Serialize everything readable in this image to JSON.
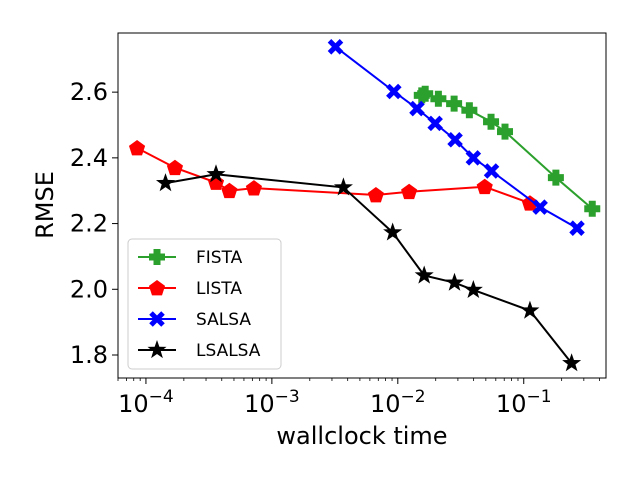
{
  "chart_data": {
    "type": "line",
    "title": "",
    "xlabel": "wallclock time",
    "ylabel": "RMSE",
    "xscale": "log",
    "xlim": [
      6e-05,
      0.45
    ],
    "ylim": [
      1.73,
      2.78
    ],
    "grid": false,
    "legend_position": "lower-left",
    "x_ticks": [
      {
        "value": 0.0001,
        "base": "10",
        "exp": "−4"
      },
      {
        "value": 0.001,
        "base": "10",
        "exp": "−3"
      },
      {
        "value": 0.01,
        "base": "10",
        "exp": "−2"
      },
      {
        "value": 0.1,
        "base": "10",
        "exp": "−1"
      }
    ],
    "y_ticks": [
      {
        "value": 1.8,
        "label": "1.8"
      },
      {
        "value": 2.0,
        "label": "2.0"
      },
      {
        "value": 2.2,
        "label": "2.2"
      },
      {
        "value": 2.4,
        "label": "2.4"
      },
      {
        "value": 2.6,
        "label": "2.6"
      }
    ],
    "series": [
      {
        "name": "FISTA",
        "color": "#2ca02c",
        "marker": "plus",
        "x": [
          0.0155,
          0.0165,
          0.021,
          0.028,
          0.037,
          0.055,
          0.071,
          0.18,
          0.35
        ],
        "y": [
          2.59,
          2.595,
          2.58,
          2.565,
          2.545,
          2.51,
          2.48,
          2.34,
          2.245
        ]
      },
      {
        "name": "LISTA",
        "color": "#ff0000",
        "marker": "pentagon",
        "x": [
          8.5e-05,
          0.00017,
          0.00036,
          0.00046,
          0.00072,
          0.0067,
          0.0123,
          0.049,
          0.112
        ],
        "y": [
          2.43,
          2.37,
          2.325,
          2.3,
          2.308,
          2.287,
          2.297,
          2.312,
          2.262
        ]
      },
      {
        "name": "SALSA",
        "color": "#0000ff",
        "marker": "x",
        "x": [
          0.0032,
          0.0093,
          0.0142,
          0.0198,
          0.0285,
          0.0398,
          0.0555,
          0.135,
          0.265
        ],
        "y": [
          2.738,
          2.602,
          2.55,
          2.505,
          2.455,
          2.4,
          2.36,
          2.25,
          2.186
        ]
      },
      {
        "name": "LSALSA",
        "color": "#000000",
        "marker": "star",
        "x": [
          0.000143,
          0.00036,
          0.0037,
          0.0091,
          0.0162,
          0.0282,
          0.0398,
          0.112,
          0.24
        ],
        "y": [
          2.323,
          2.35,
          2.31,
          2.173,
          2.042,
          2.02,
          1.998,
          1.935,
          1.775
        ]
      }
    ]
  }
}
